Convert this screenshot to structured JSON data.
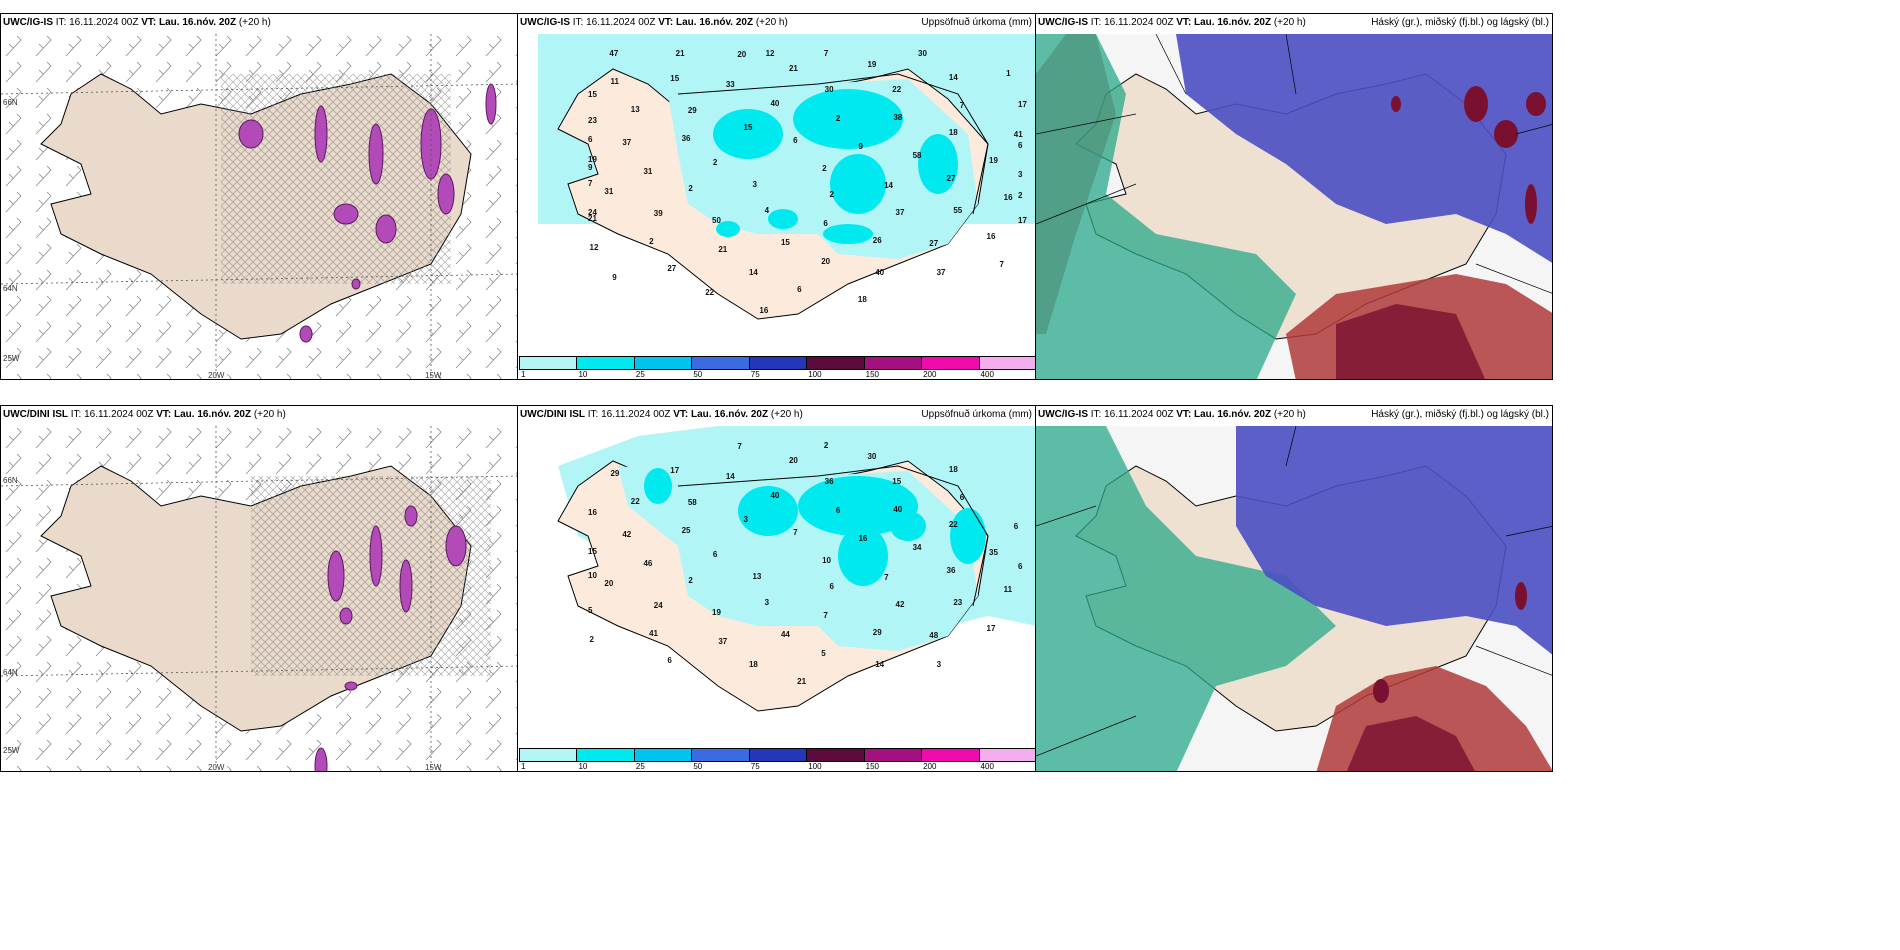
{
  "panels": {
    "tl": {
      "model": "UWC/IG-IS",
      "it": "IT: 16.11.2024 00Z",
      "vt_label": "VT:",
      "vt": "Lau. 16.nóv. 20Z",
      "lead": "(+20 h)"
    },
    "tm": {
      "model": "UWC/IG-IS",
      "it": "IT: 16.11.2024 00Z",
      "vt_label": "VT:",
      "vt": "Lau. 16.nóv. 20Z",
      "lead": "(+20 h)",
      "right": "Uppsöfnuð úrkoma (mm)"
    },
    "tr": {
      "model": "UWC/IG-IS",
      "it": "IT: 16.11.2024 00Z",
      "vt_label": "VT:",
      "vt": "Lau. 16.nóv. 20Z",
      "lead": "(+20 h)",
      "right": "Háský (gr.), miðský (fj.bl.) og lágský (bl.)"
    },
    "bl": {
      "model": "UWC/DINI ISL",
      "it": "IT: 16.11.2024 00Z",
      "vt_label": "VT:",
      "vt": "Lau. 16.nóv. 20Z",
      "lead": "(+20 h)"
    },
    "bm": {
      "model": "UWC/DINI ISL",
      "it": "IT: 16.11.2024 00Z",
      "vt_label": "VT:",
      "vt": "Lau. 16.nóv. 20Z",
      "lead": "(+20 h)",
      "right": "Uppsöfnuð úrkoma (mm)"
    },
    "br": {
      "model": "UWC/IG-IS",
      "it": "IT: 16.11.2024 00Z",
      "vt_label": "VT:",
      "vt": "Lau. 16.nóv. 20Z",
      "lead": "(+20 h)",
      "right": "Háský (gr.), miðský (fj.bl.) og lágský (bl.)"
    }
  },
  "grid_labels": {
    "lat66": "66N",
    "lat64": "64N",
    "lon20": "20W",
    "lon15": "15W",
    "lon25": "25W"
  },
  "colorbar": {
    "ticks": [
      "1",
      "10",
      "25",
      "50",
      "75",
      "100",
      "150",
      "200",
      "400"
    ],
    "colors": [
      "#b2f5f7",
      "#00e9ef",
      "#00c3ee",
      "#3a6be0",
      "#2437b8",
      "#5c0a3c",
      "#a3107f",
      "#f00caa",
      "#f4aef0"
    ]
  },
  "precip_top": [
    "2",
    "3",
    "6",
    "2",
    "2",
    "9",
    "4",
    "15",
    "14",
    "2",
    "2",
    "6",
    "36",
    "58",
    "50",
    "40",
    "37",
    "31",
    "38",
    "15",
    "29",
    "27",
    "39",
    "30",
    "26",
    "37",
    "18",
    "21",
    "33",
    "55",
    "31",
    "22",
    "20",
    "13",
    "19",
    "2",
    "21",
    "27",
    "19",
    "7",
    "14",
    "15",
    "16",
    "21",
    "19",
    "40",
    "23",
    "41",
    "27",
    "20",
    "16",
    "7",
    "14",
    "6",
    "11",
    "3",
    "12",
    "7",
    "37",
    "6",
    "17",
    "22",
    "21",
    "17",
    "24",
    "30",
    "18",
    "15",
    "6",
    "9",
    "12",
    "7",
    "9",
    "1",
    "16",
    "47",
    "2"
  ],
  "precip_bottom": [
    "10",
    "13",
    "7",
    "6",
    "6",
    "16",
    "3",
    "3",
    "7",
    "2",
    "6",
    "7",
    "25",
    "34",
    "19",
    "40",
    "42",
    "46",
    "40",
    "44",
    "58",
    "36",
    "24",
    "36",
    "29",
    "42",
    "22",
    "37",
    "14",
    "23",
    "20",
    "15",
    "5",
    "22",
    "35",
    "41",
    "20",
    "48",
    "15",
    "6",
    "18",
    "17",
    "11",
    "5",
    "30",
    "14",
    "16",
    "6",
    "6",
    "7",
    "17",
    "10",
    "18",
    "21",
    "29",
    "6",
    "2",
    "2",
    "3"
  ]
}
